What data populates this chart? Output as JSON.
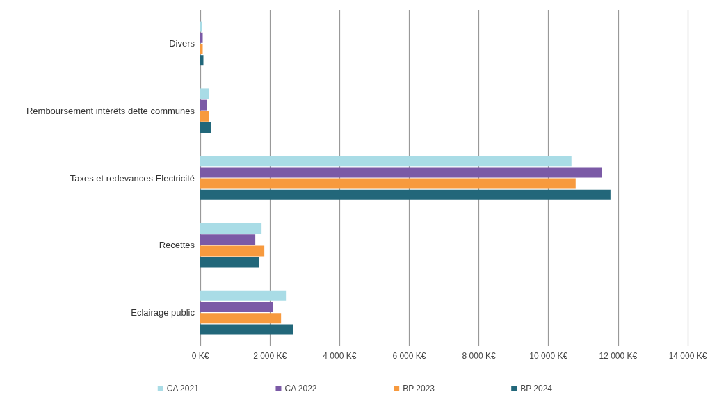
{
  "chart_data": {
    "type": "bar",
    "orientation": "horizontal",
    "categories": [
      "Divers",
      "Remboursement intérêts dette communes",
      "Taxes et redevances Electricité",
      "Recettes",
      "Eclairage public"
    ],
    "series": [
      {
        "name": "CA 2021",
        "color": "#a9dce6",
        "values": [
          60,
          240,
          10660,
          1760,
          2460
        ]
      },
      {
        "name": "CA 2022",
        "color": "#7b5aa6",
        "values": [
          70,
          200,
          11540,
          1580,
          2080
        ]
      },
      {
        "name": "BP 2023",
        "color": "#f79a3e",
        "values": [
          70,
          240,
          10780,
          1840,
          2320
        ]
      },
      {
        "name": "BP 2024",
        "color": "#22677a",
        "values": [
          90,
          300,
          11780,
          1680,
          2660
        ]
      }
    ],
    "xlim": [
      0,
      14000
    ],
    "xticks": [
      {
        "value": 0,
        "label": "0 K€"
      },
      {
        "value": 2000,
        "label": "2 000 K€"
      },
      {
        "value": 4000,
        "label": "4 000 K€"
      },
      {
        "value": 6000,
        "label": "6 000 K€"
      },
      {
        "value": 8000,
        "label": "8 000 K€"
      },
      {
        "value": 10000,
        "label": "10 000 K€"
      },
      {
        "value": 12000,
        "label": "12 000 K€"
      },
      {
        "value": 14000,
        "label": "14 000 K€"
      }
    ],
    "grid": "x",
    "legend": "bottom"
  }
}
